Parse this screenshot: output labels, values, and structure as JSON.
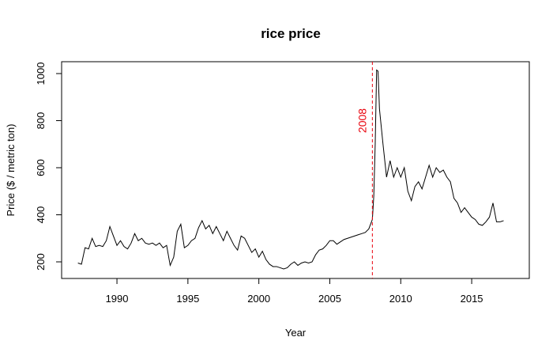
{
  "chart_data": {
    "type": "line",
    "title": "rice price",
    "x_label": "Year",
    "y_label": "Price ($ / metric ton)",
    "xlim": [
      1986.1,
      2019.06
    ],
    "ylim": [
      129.4,
      1050.4
    ],
    "xticks": [
      1990,
      1995,
      2000,
      2005,
      2010,
      2015
    ],
    "yticks": [
      200,
      400,
      600,
      800,
      1000
    ],
    "annotation": {
      "text": "2008",
      "x": 2008,
      "color": "#e8000b"
    },
    "series": [
      {
        "name": "rice price",
        "color": "#000000",
        "x": [
          1987.25,
          1987.5,
          1987.75,
          1988.0,
          1988.25,
          1988.5,
          1988.75,
          1989.0,
          1989.25,
          1989.5,
          1989.75,
          1990.0,
          1990.25,
          1990.5,
          1990.75,
          1991.0,
          1991.25,
          1991.5,
          1991.75,
          1992.0,
          1992.25,
          1992.5,
          1992.75,
          1993.0,
          1993.25,
          1993.5,
          1993.75,
          1994.0,
          1994.25,
          1994.5,
          1994.75,
          1995.0,
          1995.25,
          1995.5,
          1995.75,
          1996.0,
          1996.25,
          1996.5,
          1996.75,
          1997.0,
          1997.25,
          1997.5,
          1997.75,
          1998.0,
          1998.25,
          1998.5,
          1998.75,
          1999.0,
          1999.25,
          1999.5,
          1999.75,
          2000.0,
          2000.25,
          2000.5,
          2000.75,
          2001.0,
          2001.25,
          2001.5,
          2001.75,
          2002.0,
          2002.25,
          2002.5,
          2002.75,
          2003.0,
          2003.25,
          2003.5,
          2003.75,
          2004.0,
          2004.25,
          2004.5,
          2004.75,
          2005.0,
          2005.25,
          2005.5,
          2005.75,
          2006.0,
          2006.25,
          2006.5,
          2006.75,
          2007.0,
          2007.25,
          2007.5,
          2007.75,
          2008.0,
          2008.1,
          2008.2,
          2008.3,
          2008.4,
          2008.5,
          2008.75,
          2009.0,
          2009.25,
          2009.5,
          2009.75,
          2010.0,
          2010.25,
          2010.5,
          2010.75,
          2011.0,
          2011.25,
          2011.5,
          2011.75,
          2012.0,
          2012.25,
          2012.5,
          2012.75,
          2013.0,
          2013.25,
          2013.5,
          2013.75,
          2014.0,
          2014.25,
          2014.5,
          2014.75,
          2015.0,
          2015.25,
          2015.5,
          2015.75,
          2016.0,
          2016.25,
          2016.5,
          2016.75,
          2017.0,
          2017.25
        ],
        "values": [
          195,
          190,
          260,
          255,
          300,
          265,
          270,
          265,
          290,
          350,
          310,
          270,
          290,
          265,
          255,
          280,
          320,
          290,
          300,
          280,
          275,
          280,
          270,
          280,
          260,
          270,
          185,
          220,
          330,
          360,
          260,
          270,
          290,
          300,
          345,
          375,
          340,
          355,
          320,
          350,
          320,
          290,
          330,
          300,
          270,
          250,
          310,
          300,
          270,
          240,
          255,
          220,
          245,
          210,
          190,
          180,
          180,
          175,
          170,
          175,
          190,
          200,
          185,
          195,
          200,
          195,
          200,
          230,
          250,
          255,
          270,
          290,
          290,
          275,
          285,
          295,
          300,
          305,
          310,
          315,
          320,
          325,
          340,
          380,
          480,
          700,
          1015,
          1010,
          850,
          700,
          560,
          630,
          560,
          600,
          560,
          600,
          500,
          460,
          520,
          540,
          510,
          560,
          610,
          560,
          600,
          580,
          590,
          560,
          540,
          470,
          450,
          410,
          430,
          410,
          390,
          380,
          360,
          355,
          370,
          390,
          450,
          370,
          370,
          375
        ]
      }
    ]
  }
}
